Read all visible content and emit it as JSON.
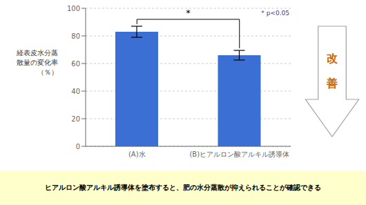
{
  "chart_data": {
    "type": "bar",
    "y_label": "経表皮水分蒸\n散量の変化率\n（％）",
    "categories": [
      "(A)水",
      "(B)ヒアルロン酸アルキル誘導体"
    ],
    "values": [
      83,
      66
    ],
    "errors": [
      4,
      3.5
    ],
    "color": "#3B6FD4",
    "ylim": [
      0,
      100
    ],
    "yticks": [
      0,
      20,
      40,
      60,
      80,
      100
    ],
    "grid": true,
    "annotations": [
      "*",
      "* p<0.05",
      "改\n善",
      "ヒアルロン酸アルキル誘導体を塗布すると、肥の水分蒸散が抑えられることが確認できる"
    ]
  }
}
